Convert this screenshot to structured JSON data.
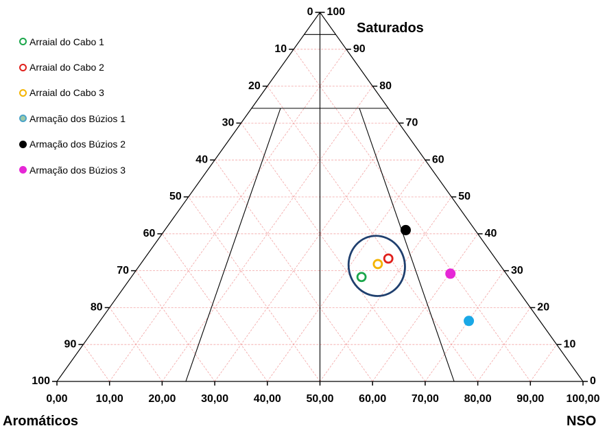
{
  "chart_data": {
    "type": "ternary-scatter",
    "axes": {
      "top": {
        "title": "Saturados",
        "ticks_right": [
          "100",
          "90",
          "80",
          "70",
          "60",
          "50",
          "40",
          "30",
          "20",
          "10",
          "0"
        ]
      },
      "left": {
        "title": "Aromáticos",
        "ticks_left": [
          "0",
          "10",
          "20",
          "30",
          "40",
          "50",
          "60",
          "70",
          "80",
          "90",
          "100"
        ]
      },
      "right": {
        "title": "NSO",
        "ticks_bottom": [
          "0,00",
          "10,00",
          "20,00",
          "30,00",
          "40,00",
          "50,00",
          "60,00",
          "70,00",
          "80,00",
          "90,00",
          "100,00"
        ]
      }
    },
    "series": [
      {
        "name": "Arraial do Cabo 1",
        "color": "#1aa64a",
        "marker": "ring",
        "sat": 28.3,
        "x": 57.9
      },
      {
        "name": "Arraial do Cabo 2",
        "color": "#e0201b",
        "marker": "ring",
        "sat": 33.3,
        "x": 63.0
      },
      {
        "name": "Arraial do Cabo 3",
        "color": "#f4b400",
        "marker": "ring",
        "sat": 31.8,
        "x": 61.0
      },
      {
        "name": "Armação dos Búzios 1",
        "color": "#1aa8e6",
        "marker": "dot",
        "legend_fill": "#9ec9a6",
        "legend_border": "#4aa3c8",
        "sat": 16.4,
        "x": 78.3
      },
      {
        "name": "Armação dos Búzios 2",
        "color": "#000000",
        "marker": "dot",
        "sat": 41.0,
        "x": 66.3
      },
      {
        "name": "Armação dos Búzios 3",
        "color": "#e627d6",
        "marker": "dot",
        "sat": 29.2,
        "x": 74.8
      }
    ],
    "ellipse": {
      "center_sat": 31.3,
      "center_x": 60.8,
      "stroke": "#1f3f6e"
    },
    "boundary_lines": [
      {
        "from": {
          "sat": 100,
          "x": 50
        },
        "to": {
          "sat": 0,
          "x": 50
        }
      },
      {
        "from": {
          "sat": 94,
          "x": 47
        },
        "to": {
          "sat": 94,
          "x": 53
        }
      },
      {
        "from": {
          "sat": 74,
          "x": 37
        },
        "to": {
          "sat": 74,
          "x": 63
        }
      },
      {
        "from": {
          "sat": 74,
          "x": 42.5
        },
        "to": {
          "sat": 0,
          "x": 24.5
        }
      },
      {
        "from": {
          "sat": 74,
          "x": 57.5
        },
        "to": {
          "sat": 0,
          "x": 75.5
        }
      }
    ],
    "grid": true
  }
}
